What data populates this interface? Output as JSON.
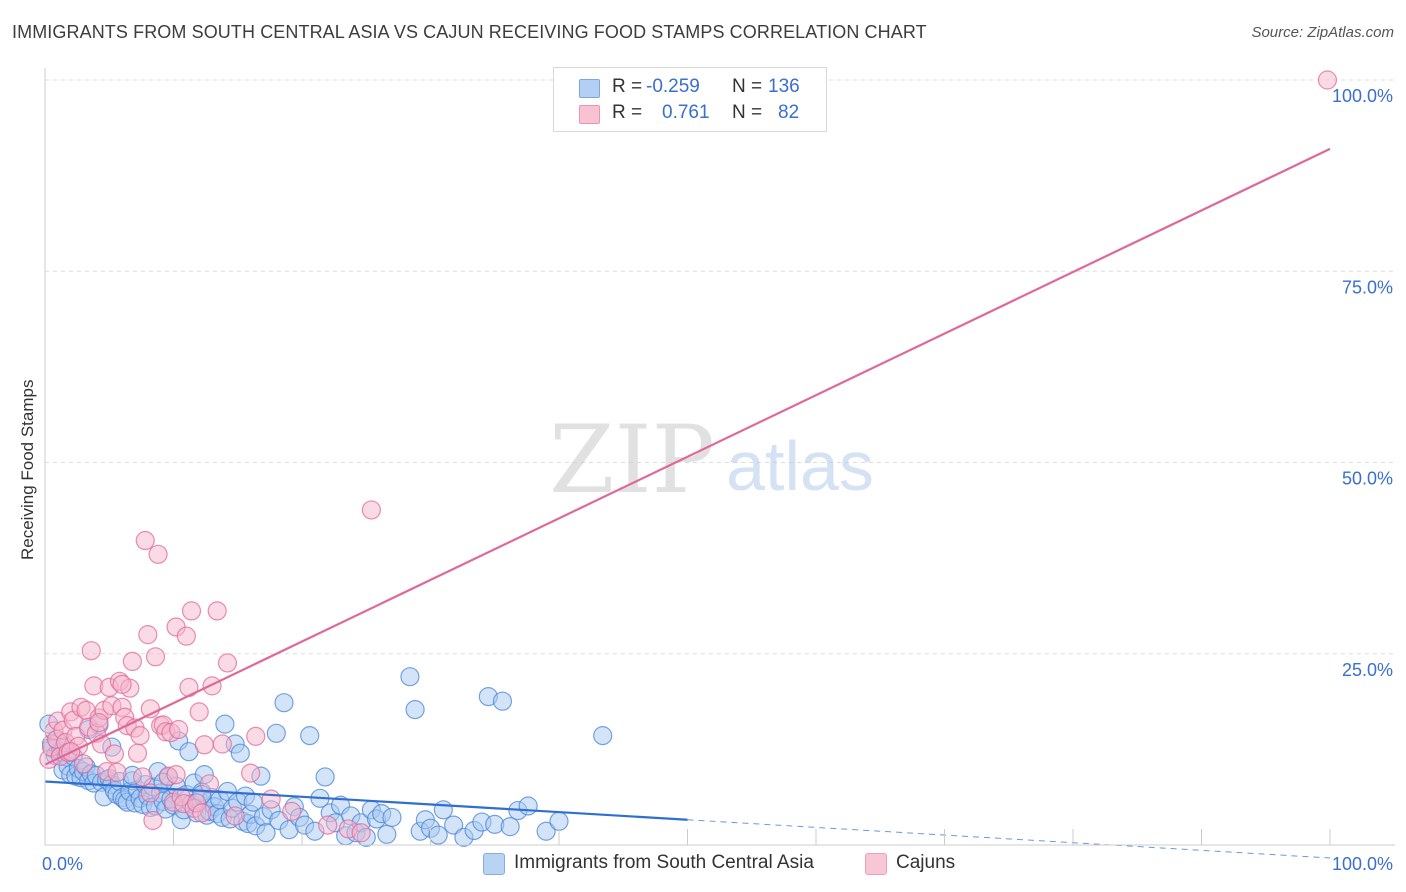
{
  "title": "IMMIGRANTS FROM SOUTH CENTRAL ASIA VS CAJUN RECEIVING FOOD STAMPS CORRELATION CHART",
  "source": "Source: ZipAtlas.com",
  "watermark": {
    "zip": "ZIP",
    "atlas": "atlas"
  },
  "legend": {
    "rows": [
      {
        "r_label": "R =",
        "r_value": "-0.259",
        "n_label": "N =",
        "n_value": "136",
        "color": "#a8c8f0"
      },
      {
        "r_label": "R =",
        "r_value": "0.761",
        "n_label": "N =",
        "n_value": "82",
        "color": "#f5b8cc"
      }
    ]
  },
  "bottom_legend": [
    {
      "label": "Immigrants from South Central Asia",
      "color": "#b9d3f3"
    },
    {
      "label": "Cajuns",
      "color": "#f8c6d5"
    }
  ],
  "chart_data": {
    "type": "scatter",
    "title": "IMMIGRANTS FROM SOUTH CENTRAL ASIA VS CAJUN RECEIVING FOOD STAMPS CORRELATION CHART",
    "xlabel": "",
    "ylabel": "Receiving Food Stamps",
    "xlim": [
      0,
      100
    ],
    "ylim": [
      0,
      100
    ],
    "x_tick_labels": [
      "0.0%",
      "100.0%"
    ],
    "y_ticks": [
      25,
      50,
      75,
      100
    ],
    "y_tick_labels": [
      "25.0%",
      "50.0%",
      "75.0%",
      "100.0%"
    ],
    "grid": true,
    "series": [
      {
        "name": "Immigrants from South Central Asia",
        "color": "#4a86d8",
        "fill": "#a9c9f1",
        "trend": {
          "x": [
            0,
            50
          ],
          "y": [
            8.3,
            3.3
          ],
          "dashed_x": [
            50,
            100
          ],
          "dashed_y": [
            3.3,
            -1.7
          ]
        },
        "points": [
          [
            0.3,
            15.8
          ],
          [
            0.5,
            13.2
          ],
          [
            0.6,
            12.6
          ],
          [
            0.8,
            11.7
          ],
          [
            1.0,
            13.5
          ],
          [
            1.2,
            12.2
          ],
          [
            1.4,
            9.8
          ],
          [
            1.5,
            12.9
          ],
          [
            1.7,
            11.5
          ],
          [
            1.8,
            10.3
          ],
          [
            2.0,
            9.2
          ],
          [
            2.2,
            11.6
          ],
          [
            2.4,
            9.0
          ],
          [
            2.6,
            10.0
          ],
          [
            2.8,
            8.8
          ],
          [
            3.0,
            9.6
          ],
          [
            3.2,
            10.2
          ],
          [
            3.4,
            8.4
          ],
          [
            3.6,
            9.3
          ],
          [
            3.8,
            8.1
          ],
          [
            4.0,
            9.1
          ],
          [
            4.2,
            15.7
          ],
          [
            4.4,
            8.2
          ],
          [
            4.6,
            6.3
          ],
          [
            4.8,
            8.5
          ],
          [
            5.0,
            8.7
          ],
          [
            5.2,
            7.9
          ],
          [
            5.4,
            7.1
          ],
          [
            5.6,
            6.6
          ],
          [
            5.8,
            8.3
          ],
          [
            6.0,
            6.2
          ],
          [
            6.2,
            5.9
          ],
          [
            6.4,
            5.6
          ],
          [
            6.6,
            7.0
          ],
          [
            6.8,
            8.4
          ],
          [
            7.0,
            5.5
          ],
          [
            7.2,
            7.2
          ],
          [
            7.4,
            6.1
          ],
          [
            7.6,
            5.3
          ],
          [
            7.8,
            7.9
          ],
          [
            8.0,
            6.4
          ],
          [
            8.2,
            4.9
          ],
          [
            8.4,
            7.6
          ],
          [
            8.6,
            5.1
          ],
          [
            8.8,
            9.6
          ],
          [
            9.0,
            6.8
          ],
          [
            9.2,
            5.7
          ],
          [
            9.4,
            4.7
          ],
          [
            9.6,
            8.9
          ],
          [
            9.8,
            6.0
          ],
          [
            10.0,
            5.2
          ],
          [
            10.2,
            7.7
          ],
          [
            10.4,
            13.6
          ],
          [
            10.6,
            3.3
          ],
          [
            10.8,
            4.6
          ],
          [
            11.0,
            6.6
          ],
          [
            11.2,
            12.2
          ],
          [
            11.4,
            5.4
          ],
          [
            11.6,
            8.1
          ],
          [
            11.8,
            4.2
          ],
          [
            12.0,
            5.8
          ],
          [
            12.2,
            6.9
          ],
          [
            12.4,
            9.2
          ],
          [
            12.6,
            3.9
          ],
          [
            12.8,
            4.4
          ],
          [
            13.0,
            6.2
          ],
          [
            13.2,
            5.0
          ],
          [
            13.4,
            4.1
          ],
          [
            13.6,
            5.9
          ],
          [
            13.8,
            3.6
          ],
          [
            14.0,
            15.8
          ],
          [
            14.2,
            7.0
          ],
          [
            14.4,
            3.4
          ],
          [
            14.6,
            4.8
          ],
          [
            14.8,
            13.2
          ],
          [
            15.0,
            5.6
          ],
          [
            15.2,
            12.0
          ],
          [
            15.4,
            3.1
          ],
          [
            15.6,
            6.4
          ],
          [
            15.8,
            2.8
          ],
          [
            16.0,
            4.0
          ],
          [
            16.4,
            2.5
          ],
          [
            16.8,
            9.0
          ],
          [
            17.0,
            3.7
          ],
          [
            17.2,
            1.6
          ],
          [
            17.6,
            4.6
          ],
          [
            18.0,
            14.6
          ],
          [
            18.2,
            3.2
          ],
          [
            18.6,
            18.6
          ],
          [
            19.0,
            2.0
          ],
          [
            19.4,
            5.0
          ],
          [
            19.8,
            3.6
          ],
          [
            20.2,
            2.6
          ],
          [
            20.6,
            14.3
          ],
          [
            21.0,
            1.8
          ],
          [
            21.4,
            6.1
          ],
          [
            21.8,
            8.9
          ],
          [
            22.2,
            4.2
          ],
          [
            22.6,
            2.9
          ],
          [
            23.0,
            5.2
          ],
          [
            23.4,
            1.2
          ],
          [
            23.8,
            3.8
          ],
          [
            24.2,
            1.6
          ],
          [
            24.6,
            2.9
          ],
          [
            25.0,
            1.0
          ],
          [
            25.4,
            4.6
          ],
          [
            25.8,
            3.4
          ],
          [
            26.2,
            4.1
          ],
          [
            26.6,
            1.4
          ],
          [
            27.0,
            3.6
          ],
          [
            28.4,
            22.0
          ],
          [
            28.8,
            17.7
          ],
          [
            29.2,
            1.8
          ],
          [
            29.6,
            3.3
          ],
          [
            30.0,
            2.2
          ],
          [
            30.6,
            1.3
          ],
          [
            31.0,
            4.6
          ],
          [
            31.8,
            2.6
          ],
          [
            32.6,
            1.0
          ],
          [
            33.4,
            1.9
          ],
          [
            34.0,
            3.0
          ],
          [
            34.5,
            19.4
          ],
          [
            35.0,
            2.7
          ],
          [
            35.6,
            18.8
          ],
          [
            36.2,
            2.4
          ],
          [
            36.8,
            4.5
          ],
          [
            37.6,
            5.1
          ],
          [
            39.0,
            1.8
          ],
          [
            40.0,
            3.1
          ],
          [
            43.4,
            14.3
          ],
          [
            5.2,
            12.8
          ],
          [
            16.2,
            5.6
          ],
          [
            12.2,
            6.6
          ],
          [
            6.8,
            9.1
          ],
          [
            9.2,
            8.2
          ],
          [
            3.4,
            15.1
          ]
        ]
      },
      {
        "name": "Cajuns",
        "color": "#e06898",
        "fill": "#f5b6cb",
        "trend": {
          "x": [
            0,
            100
          ],
          "y": [
            10.5,
            91.0
          ]
        },
        "points": [
          [
            0.3,
            11.2
          ],
          [
            0.5,
            12.8
          ],
          [
            0.7,
            14.9
          ],
          [
            0.9,
            13.8
          ],
          [
            1.0,
            16.2
          ],
          [
            1.2,
            11.6
          ],
          [
            1.4,
            15.0
          ],
          [
            1.6,
            13.4
          ],
          [
            1.8,
            12.1
          ],
          [
            2.0,
            17.4
          ],
          [
            2.2,
            16.3
          ],
          [
            2.4,
            14.2
          ],
          [
            2.6,
            12.9
          ],
          [
            2.8,
            18.0
          ],
          [
            3.0,
            10.6
          ],
          [
            3.2,
            17.6
          ],
          [
            3.4,
            15.4
          ],
          [
            3.6,
            25.4
          ],
          [
            3.8,
            20.8
          ],
          [
            4.0,
            14.6
          ],
          [
            4.2,
            16.6
          ],
          [
            4.4,
            13.2
          ],
          [
            4.6,
            17.6
          ],
          [
            4.8,
            9.6
          ],
          [
            5.0,
            20.6
          ],
          [
            5.2,
            18.2
          ],
          [
            5.4,
            11.9
          ],
          [
            5.6,
            9.5
          ],
          [
            5.8,
            21.4
          ],
          [
            6.0,
            18.0
          ],
          [
            6.2,
            16.7
          ],
          [
            6.4,
            15.6
          ],
          [
            6.6,
            20.5
          ],
          [
            6.8,
            24.0
          ],
          [
            7.0,
            15.3
          ],
          [
            7.2,
            12.0
          ],
          [
            7.4,
            14.3
          ],
          [
            7.6,
            8.9
          ],
          [
            7.8,
            39.8
          ],
          [
            8.0,
            27.5
          ],
          [
            8.2,
            17.8
          ],
          [
            8.4,
            3.2
          ],
          [
            8.6,
            24.6
          ],
          [
            8.8,
            38.0
          ],
          [
            9.0,
            15.6
          ],
          [
            9.2,
            15.7
          ],
          [
            9.4,
            14.8
          ],
          [
            9.6,
            9.0
          ],
          [
            9.8,
            14.7
          ],
          [
            10.0,
            5.6
          ],
          [
            10.2,
            28.5
          ],
          [
            10.4,
            15.1
          ],
          [
            10.6,
            6.3
          ],
          [
            10.8,
            5.4
          ],
          [
            11.0,
            27.3
          ],
          [
            11.2,
            20.6
          ],
          [
            11.4,
            30.6
          ],
          [
            11.6,
            4.8
          ],
          [
            11.8,
            5.5
          ],
          [
            12.0,
            17.4
          ],
          [
            12.4,
            13.1
          ],
          [
            12.8,
            8.0
          ],
          [
            13.0,
            20.8
          ],
          [
            13.4,
            30.6
          ],
          [
            13.8,
            13.2
          ],
          [
            14.2,
            23.8
          ],
          [
            16.0,
            9.4
          ],
          [
            16.4,
            14.2
          ],
          [
            17.6,
            6.0
          ],
          [
            19.2,
            4.4
          ],
          [
            22.0,
            2.6
          ],
          [
            23.6,
            2.1
          ],
          [
            25.4,
            43.8
          ],
          [
            2.0,
            12.2
          ],
          [
            4.2,
            16.0
          ],
          [
            6.0,
            21.0
          ],
          [
            8.2,
            6.8
          ],
          [
            10.2,
            9.2
          ],
          [
            12.2,
            4.2
          ],
          [
            14.8,
            3.8
          ],
          [
            24.6,
            1.6
          ],
          [
            99.8,
            100.0
          ]
        ]
      }
    ]
  }
}
